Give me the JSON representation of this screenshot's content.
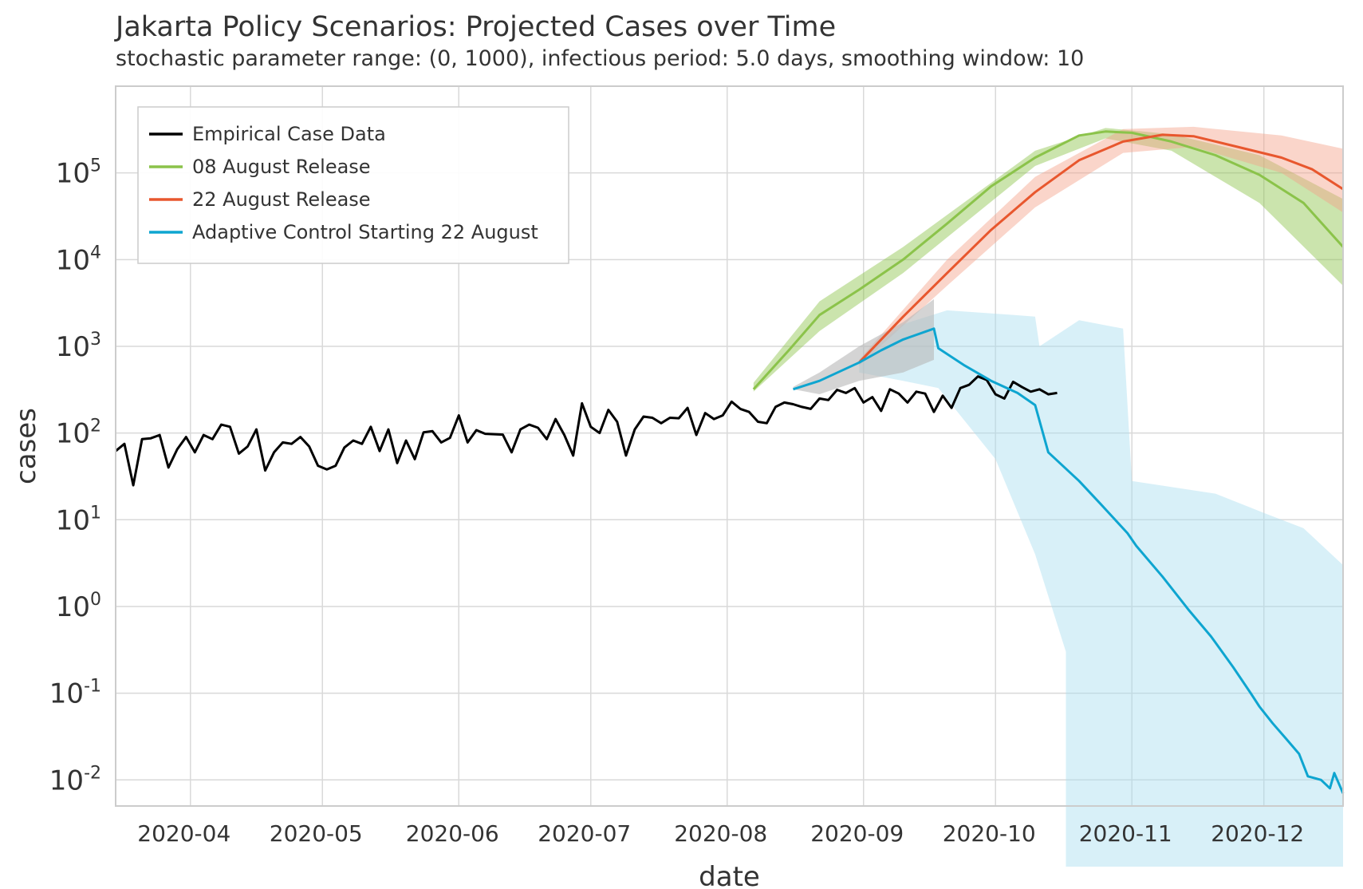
{
  "chart_data": {
    "type": "line",
    "title": "Jakarta Policy Scenarios: Projected Cases over Time",
    "subtitle": "stochastic parameter range: (0, 1000), infectious period: 5.0 days, smoothing window: 10",
    "xlabel": "date",
    "ylabel": "cases",
    "yscale": "log",
    "ylim": [
      0.005,
      1000000
    ],
    "xlim": [
      "2020-03-15",
      "2020-12-19"
    ],
    "x_ticks": [
      "2020-04",
      "2020-05",
      "2020-06",
      "2020-07",
      "2020-08",
      "2020-09",
      "2020-10",
      "2020-11",
      "2020-12"
    ],
    "y_ticks": [
      {
        "base": "10",
        "exp": "-2",
        "value": 0.01
      },
      {
        "base": "10",
        "exp": "-1",
        "value": 0.1
      },
      {
        "base": "10",
        "exp": "0",
        "value": 1
      },
      {
        "base": "10",
        "exp": "1",
        "value": 10
      },
      {
        "base": "10",
        "exp": "2",
        "value": 100
      },
      {
        "base": "10",
        "exp": "3",
        "value": 1000
      },
      {
        "base": "10",
        "exp": "4",
        "value": 10000
      },
      {
        "base": "10",
        "exp": "5",
        "value": 100000
      }
    ],
    "grid": true,
    "legend_position": "top-left",
    "series": [
      {
        "name": "Empirical Case Data",
        "color": "#000000",
        "points": [
          [
            "2020-03-15",
            62
          ],
          [
            "2020-03-17",
            75
          ],
          [
            "2020-03-19",
            25
          ],
          [
            "2020-03-21",
            85
          ],
          [
            "2020-03-23",
            87
          ],
          [
            "2020-03-25",
            95
          ],
          [
            "2020-03-27",
            40
          ],
          [
            "2020-03-29",
            65
          ],
          [
            "2020-03-31",
            90
          ],
          [
            "2020-04-02",
            60
          ],
          [
            "2020-04-04",
            95
          ],
          [
            "2020-04-06",
            85
          ],
          [
            "2020-04-08",
            125
          ],
          [
            "2020-04-10",
            118
          ],
          [
            "2020-04-12",
            58
          ],
          [
            "2020-04-14",
            70
          ],
          [
            "2020-04-16",
            110
          ],
          [
            "2020-04-18",
            37
          ],
          [
            "2020-04-20",
            60
          ],
          [
            "2020-04-22",
            78
          ],
          [
            "2020-04-24",
            75
          ],
          [
            "2020-04-26",
            90
          ],
          [
            "2020-04-28",
            70
          ],
          [
            "2020-04-30",
            42
          ],
          [
            "2020-05-02",
            38
          ],
          [
            "2020-05-04",
            42
          ],
          [
            "2020-05-06",
            68
          ],
          [
            "2020-05-08",
            82
          ],
          [
            "2020-05-10",
            75
          ],
          [
            "2020-05-12",
            118
          ],
          [
            "2020-05-14",
            62
          ],
          [
            "2020-05-16",
            110
          ],
          [
            "2020-05-18",
            45
          ],
          [
            "2020-05-20",
            82
          ],
          [
            "2020-05-22",
            50
          ],
          [
            "2020-05-24",
            102
          ],
          [
            "2020-05-26",
            105
          ],
          [
            "2020-05-28",
            78
          ],
          [
            "2020-05-30",
            88
          ],
          [
            "2020-06-01",
            160
          ],
          [
            "2020-06-03",
            78
          ],
          [
            "2020-06-05",
            108
          ],
          [
            "2020-06-07",
            98
          ],
          [
            "2020-06-09",
            97
          ],
          [
            "2020-06-11",
            96
          ],
          [
            "2020-06-13",
            60
          ],
          [
            "2020-06-15",
            110
          ],
          [
            "2020-06-17",
            125
          ],
          [
            "2020-06-19",
            115
          ],
          [
            "2020-06-21",
            85
          ],
          [
            "2020-06-23",
            145
          ],
          [
            "2020-06-25",
            95
          ],
          [
            "2020-06-27",
            55
          ],
          [
            "2020-06-29",
            220
          ],
          [
            "2020-07-01",
            118
          ],
          [
            "2020-07-03",
            100
          ],
          [
            "2020-07-05",
            185
          ],
          [
            "2020-07-07",
            135
          ],
          [
            "2020-07-09",
            55
          ],
          [
            "2020-07-11",
            110
          ],
          [
            "2020-07-13",
            155
          ],
          [
            "2020-07-15",
            150
          ],
          [
            "2020-07-17",
            130
          ],
          [
            "2020-07-19",
            150
          ],
          [
            "2020-07-21",
            148
          ],
          [
            "2020-07-23",
            195
          ],
          [
            "2020-07-25",
            95
          ],
          [
            "2020-07-27",
            170
          ],
          [
            "2020-07-29",
            145
          ],
          [
            "2020-07-31",
            160
          ],
          [
            "2020-08-02",
            230
          ],
          [
            "2020-08-04",
            190
          ],
          [
            "2020-08-06",
            175
          ],
          [
            "2020-08-08",
            135
          ],
          [
            "2020-08-10",
            130
          ],
          [
            "2020-08-12",
            200
          ],
          [
            "2020-08-14",
            225
          ],
          [
            "2020-08-16",
            215
          ],
          [
            "2020-08-18",
            200
          ],
          [
            "2020-08-20",
            190
          ],
          [
            "2020-08-22",
            250
          ],
          [
            "2020-08-24",
            240
          ],
          [
            "2020-08-26",
            315
          ],
          [
            "2020-08-28",
            290
          ],
          [
            "2020-08-30",
            330
          ],
          [
            "2020-09-01",
            225
          ],
          [
            "2020-09-03",
            260
          ],
          [
            "2020-09-05",
            180
          ],
          [
            "2020-09-07",
            320
          ],
          [
            "2020-09-09",
            285
          ],
          [
            "2020-09-11",
            225
          ],
          [
            "2020-09-13",
            300
          ],
          [
            "2020-09-15",
            285
          ],
          [
            "2020-09-17",
            175
          ],
          [
            "2020-09-19",
            270
          ],
          [
            "2020-09-21",
            195
          ],
          [
            "2020-09-23",
            330
          ],
          [
            "2020-09-25",
            360
          ],
          [
            "2020-09-27",
            450
          ],
          [
            "2020-09-29",
            410
          ],
          [
            "2020-10-01",
            280
          ],
          [
            "2020-10-03",
            250
          ],
          [
            "2020-10-05",
            390
          ],
          [
            "2020-10-07",
            340
          ],
          [
            "2020-10-09",
            300
          ],
          [
            "2020-10-11",
            320
          ],
          [
            "2020-10-13",
            280
          ],
          [
            "2020-10-15",
            290
          ]
        ]
      },
      {
        "name": "08 August Release",
        "color": "#8bc34a",
        "band_color": "#8bc34a",
        "points": [
          [
            "2020-08-07",
            320
          ],
          [
            "2020-08-15",
            900
          ],
          [
            "2020-08-22",
            2300
          ],
          [
            "2020-08-31",
            4500
          ],
          [
            "2020-09-10",
            10000
          ],
          [
            "2020-09-20",
            26000
          ],
          [
            "2020-09-30",
            70000
          ],
          [
            "2020-10-10",
            150000
          ],
          [
            "2020-10-20",
            270000
          ],
          [
            "2020-10-26",
            300000
          ],
          [
            "2020-11-01",
            290000
          ],
          [
            "2020-11-10",
            230000
          ],
          [
            "2020-11-20",
            160000
          ],
          [
            "2020-11-30",
            95000
          ],
          [
            "2020-12-10",
            45000
          ],
          [
            "2020-12-19",
            14000
          ]
        ],
        "band_low": [
          [
            "2020-08-07",
            300
          ],
          [
            "2020-08-22",
            1500
          ],
          [
            "2020-09-10",
            7000
          ],
          [
            "2020-10-10",
            120000
          ],
          [
            "2020-10-26",
            250000
          ],
          [
            "2020-11-10",
            180000
          ],
          [
            "2020-11-30",
            45000
          ],
          [
            "2020-12-19",
            5000
          ]
        ],
        "band_high": [
          [
            "2020-08-07",
            380
          ],
          [
            "2020-08-22",
            3300
          ],
          [
            "2020-09-10",
            14000
          ],
          [
            "2020-10-10",
            180000
          ],
          [
            "2020-10-26",
            330000
          ],
          [
            "2020-11-10",
            280000
          ],
          [
            "2020-11-30",
            160000
          ],
          [
            "2020-12-19",
            50000
          ]
        ]
      },
      {
        "name": "22 August Release",
        "color": "#e8572e",
        "band_color": "#f4a28a",
        "points": [
          [
            "2020-08-31",
            650
          ],
          [
            "2020-09-10",
            2200
          ],
          [
            "2020-09-20",
            7000
          ],
          [
            "2020-09-30",
            22000
          ],
          [
            "2020-10-10",
            60000
          ],
          [
            "2020-10-20",
            140000
          ],
          [
            "2020-10-30",
            230000
          ],
          [
            "2020-11-08",
            275000
          ],
          [
            "2020-11-15",
            265000
          ],
          [
            "2020-11-25",
            200000
          ],
          [
            "2020-12-05",
            150000
          ],
          [
            "2020-12-12",
            110000
          ],
          [
            "2020-12-19",
            65000
          ]
        ],
        "band_low": [
          [
            "2020-08-31",
            600
          ],
          [
            "2020-09-20",
            5000
          ],
          [
            "2020-10-10",
            40000
          ],
          [
            "2020-10-30",
            170000
          ],
          [
            "2020-11-15",
            200000
          ],
          [
            "2020-12-05",
            100000
          ],
          [
            "2020-12-19",
            35000
          ]
        ],
        "band_high": [
          [
            "2020-08-31",
            700
          ],
          [
            "2020-09-20",
            10000
          ],
          [
            "2020-10-10",
            90000
          ],
          [
            "2020-10-30",
            320000
          ],
          [
            "2020-11-15",
            340000
          ],
          [
            "2020-12-05",
            270000
          ],
          [
            "2020-12-19",
            190000
          ]
        ]
      },
      {
        "name": "Adaptive Control Starting 22 August",
        "color": "#0ea5d0",
        "band_color": "#a8def0",
        "points": [
          [
            "2020-08-16",
            320
          ],
          [
            "2020-08-22",
            400
          ],
          [
            "2020-08-31",
            650
          ],
          [
            "2020-09-05",
            900
          ],
          [
            "2020-09-10",
            1200
          ],
          [
            "2020-09-17",
            1600
          ],
          [
            "2020-09-18",
            950
          ],
          [
            "2020-09-24",
            600
          ],
          [
            "2020-09-30",
            400
          ],
          [
            "2020-10-06",
            290
          ],
          [
            "2020-10-10",
            210
          ],
          [
            "2020-10-13",
            60
          ],
          [
            "2020-10-20",
            28
          ],
          [
            "2020-10-25",
            15
          ],
          [
            "2020-10-31",
            7
          ],
          [
            "2020-11-02",
            5
          ],
          [
            "2020-11-08",
            2.2
          ],
          [
            "2020-11-14",
            0.9
          ],
          [
            "2020-11-19",
            0.45
          ],
          [
            "2020-11-24",
            0.2
          ],
          [
            "2020-11-28",
            0.1
          ],
          [
            "2020-11-30",
            0.07
          ],
          [
            "2020-12-03",
            0.045
          ],
          [
            "2020-12-06",
            0.03
          ],
          [
            "2020-12-09",
            0.02
          ],
          [
            "2020-12-11",
            0.011
          ],
          [
            "2020-12-14",
            0.01
          ],
          [
            "2020-12-16",
            0.008
          ],
          [
            "2020-12-17",
            0.012
          ],
          [
            "2020-12-19",
            0.007
          ]
        ],
        "band_low": [
          [
            "2020-08-31",
            500
          ],
          [
            "2020-09-10",
            400
          ],
          [
            "2020-09-18",
            330
          ],
          [
            "2020-10-01",
            50
          ],
          [
            "2020-10-10",
            4
          ],
          [
            "2020-10-17",
            0.3
          ],
          [
            "2020-10-17",
            0.001
          ],
          [
            "2020-12-19",
            0.001
          ]
        ],
        "band_high": [
          [
            "2020-08-31",
            700
          ],
          [
            "2020-09-10",
            1800
          ],
          [
            "2020-09-20",
            2600
          ],
          [
            "2020-10-05",
            2300
          ],
          [
            "2020-10-10",
            2200
          ],
          [
            "2020-10-11",
            1000
          ],
          [
            "2020-10-20",
            2000
          ],
          [
            "2020-10-30",
            1600
          ],
          [
            "2020-11-01",
            28
          ],
          [
            "2020-11-20",
            20
          ],
          [
            "2020-12-01",
            12
          ],
          [
            "2020-12-10",
            8
          ],
          [
            "2020-12-19",
            3
          ]
        ]
      }
    ],
    "projection_gray_band": {
      "color": "#b8b8b8",
      "band_low": [
        [
          "2020-08-16",
          320
        ],
        [
          "2020-08-22",
          280
        ],
        [
          "2020-08-31",
          400
        ],
        [
          "2020-09-10",
          500
        ],
        [
          "2020-09-17",
          700
        ]
      ],
      "band_high": [
        [
          "2020-08-16",
          340
        ],
        [
          "2020-08-22",
          500
        ],
        [
          "2020-08-31",
          1000
        ],
        [
          "2020-09-10",
          1900
        ],
        [
          "2020-09-17",
          3500
        ]
      ]
    }
  }
}
